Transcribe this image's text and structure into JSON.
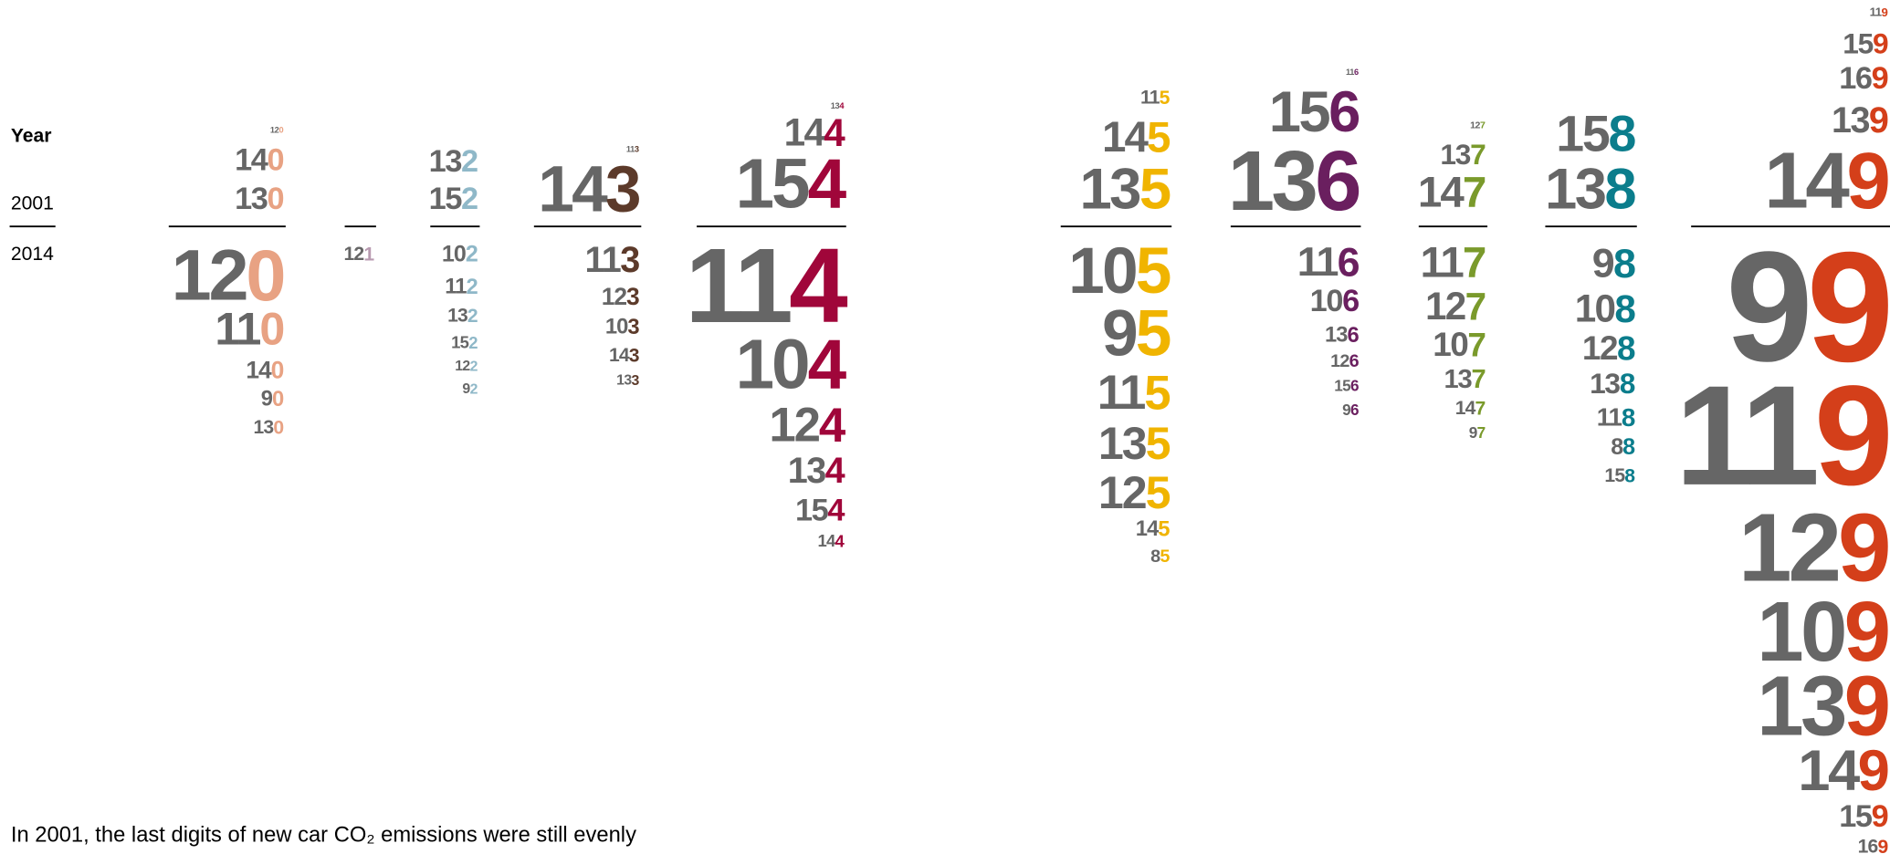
{
  "legend": {
    "title": "Year",
    "top_label": "2001",
    "bottom_label": "2014"
  },
  "caption": "In 2001, the last digits of new car CO₂ emissions were still evenly",
  "columns": [
    {
      "color": "#e8a283",
      "above": [
        120,
        140,
        130
      ],
      "below": [
        120,
        110,
        140,
        90,
        130
      ]
    },
    {
      "color": "#b89ab0",
      "above": [],
      "below": [
        121
      ]
    },
    {
      "color": "#8fb8c8",
      "above": [
        132,
        152
      ],
      "below": [
        102,
        112,
        132,
        152,
        122,
        92
      ]
    },
    {
      "color": "#5c3a2a",
      "above": [
        113,
        143
      ],
      "below": [
        113,
        123,
        103,
        143,
        133
      ]
    },
    {
      "color": "#a0063a",
      "above": [
        134,
        144,
        154
      ],
      "below": [
        114,
        104,
        124,
        134,
        154,
        144
      ]
    },
    {
      "color": "#f0b400",
      "above": [
        115,
        145,
        135
      ],
      "below": [
        105,
        95,
        115,
        135,
        125,
        145,
        85
      ]
    },
    {
      "color": "#6a1f5f",
      "above": [
        116,
        156,
        136
      ],
      "below": [
        116,
        106,
        136,
        126,
        156,
        96
      ]
    },
    {
      "color": "#7a9a2b",
      "above": [
        127,
        137,
        147
      ],
      "below": [
        117,
        127,
        107,
        137,
        147,
        97
      ]
    },
    {
      "color": "#0b7d8c",
      "above": [
        158,
        138
      ],
      "below": [
        98,
        108,
        128,
        138,
        118,
        88,
        158
      ]
    },
    {
      "color": "#d43f1a",
      "above": [
        119,
        159,
        169,
        139,
        149
      ],
      "below": [
        99,
        119,
        129,
        109,
        139,
        149,
        159,
        169
      ]
    }
  ]
}
